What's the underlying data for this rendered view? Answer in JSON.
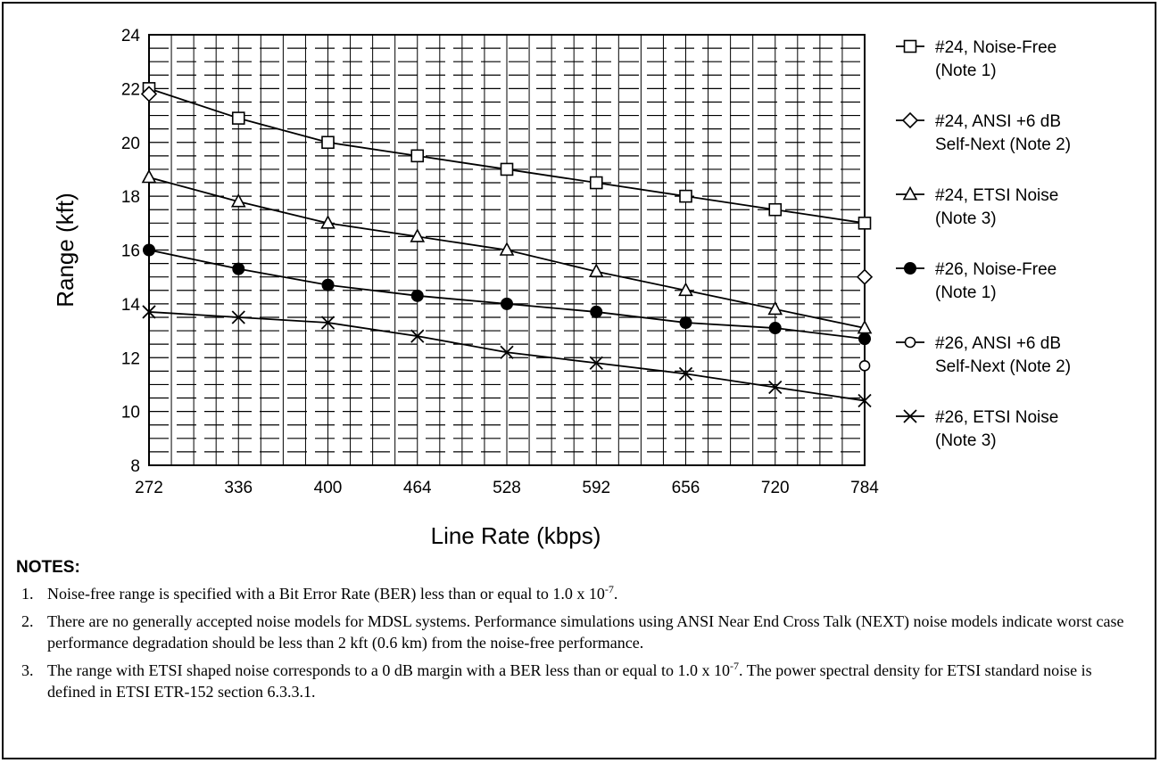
{
  "chart_data": {
    "type": "line",
    "title": "",
    "xlabel": "Line Rate (kbps)",
    "ylabel": "Range (kft)",
    "x": [
      272,
      336,
      400,
      464,
      528,
      592,
      656,
      720,
      784
    ],
    "xlim": [
      272,
      784
    ],
    "ylim": [
      8,
      24
    ],
    "yticks": [
      8,
      10,
      12,
      14,
      16,
      18,
      20,
      22,
      24
    ],
    "xtick_labels": [
      "272",
      "336",
      "400",
      "464",
      "528",
      "592",
      "656",
      "720",
      "784"
    ],
    "ytick_labels": [
      "8",
      "10",
      "12",
      "14",
      "16",
      "18",
      "20",
      "22",
      "24"
    ],
    "grid": true,
    "legend_position": "right",
    "series": [
      {
        "name": "#24, Noise-Free",
        "note": "(Note 1)",
        "marker": "open-square",
        "x": [
          272,
          336,
          400,
          464,
          528,
          592,
          656,
          720,
          784
        ],
        "values": [
          22.0,
          20.9,
          20.0,
          19.5,
          19.0,
          18.5,
          18.0,
          17.5,
          17.0
        ]
      },
      {
        "name": "#24, ANSI +6 dB",
        "note": "Self-Next (Note 2)",
        "marker": "open-diamond",
        "x": [
          272,
          784
        ],
        "values": [
          21.8,
          15.0
        ]
      },
      {
        "name": "#24, ETSI Noise",
        "note": "(Note 3)",
        "marker": "open-triangle",
        "x": [
          272,
          336,
          400,
          464,
          528,
          592,
          656,
          720,
          784
        ],
        "values": [
          18.7,
          17.8,
          17.0,
          16.5,
          16.0,
          15.2,
          14.5,
          13.8,
          13.1
        ]
      },
      {
        "name": "#26, Noise-Free",
        "note": "(Note 1)",
        "marker": "filled-circle",
        "x": [
          272,
          336,
          400,
          464,
          528,
          592,
          656,
          720,
          784
        ],
        "values": [
          16.0,
          15.3,
          14.7,
          14.3,
          14.0,
          13.7,
          13.3,
          13.1,
          12.7
        ]
      },
      {
        "name": "#26, ANSI +6 dB",
        "note": "Self-Next (Note 2)",
        "marker": "open-circle",
        "x": [
          784
        ],
        "values": [
          11.7
        ]
      },
      {
        "name": "#26, ETSI Noise",
        "note": "(Note 3)",
        "marker": "x-cross",
        "x": [
          272,
          336,
          400,
          464,
          528,
          592,
          656,
          720,
          784
        ],
        "values": [
          13.7,
          13.5,
          13.3,
          12.8,
          12.2,
          11.8,
          11.4,
          10.9,
          10.4
        ]
      }
    ]
  },
  "notes": {
    "title": "NOTES:",
    "items": [
      {
        "num": "1.",
        "text": "Noise-free range is specified with a Bit Error Rate (BER) less than or equal to 1.0 x 10",
        "sup": "-7",
        "after": "."
      },
      {
        "num": "2.",
        "text": "There are no generally accepted noise models for MDSL systems.  Performance simulations using ANSI Near End Cross Talk (NEXT) noise models indicate worst case performance degradation should be less than 2 kft (0.6 km) from the noise-free performance."
      },
      {
        "num": "3.",
        "text": "The range with ETSI shaped noise corresponds to a 0 dB margin with a BER less than or equal to 1.0 x 10",
        "sup": "-7",
        "after": ". The power spectral density for ETSI standard noise is defined in ETSI ETR-152 section 6.3.3.1."
      }
    ]
  }
}
